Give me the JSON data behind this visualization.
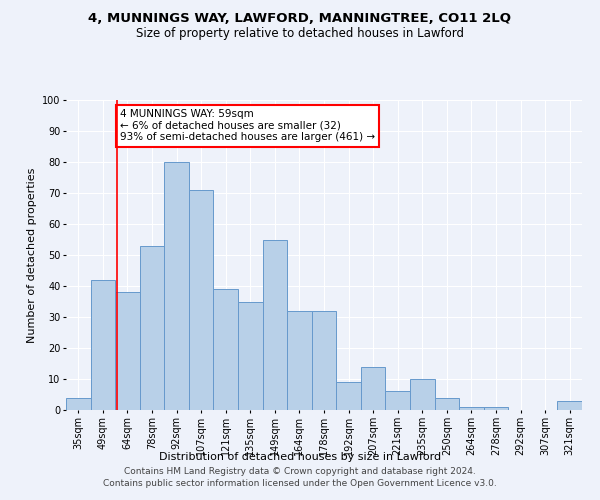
{
  "title": "4, MUNNINGS WAY, LAWFORD, MANNINGTREE, CO11 2LQ",
  "subtitle": "Size of property relative to detached houses in Lawford",
  "xlabel": "Distribution of detached houses by size in Lawford",
  "ylabel": "Number of detached properties",
  "categories": [
    "35sqm",
    "49sqm",
    "64sqm",
    "78sqm",
    "92sqm",
    "107sqm",
    "121sqm",
    "135sqm",
    "149sqm",
    "164sqm",
    "178sqm",
    "192sqm",
    "207sqm",
    "221sqm",
    "235sqm",
    "250sqm",
    "264sqm",
    "278sqm",
    "292sqm",
    "307sqm",
    "321sqm"
  ],
  "values": [
    4,
    42,
    38,
    53,
    80,
    71,
    39,
    35,
    55,
    32,
    32,
    9,
    14,
    6,
    10,
    4,
    1,
    1,
    0,
    0,
    3
  ],
  "bar_color": "#b8d0e8",
  "bar_edge_color": "#6699cc",
  "annotation_text": "4 MUNNINGS WAY: 59sqm\n← 6% of detached houses are smaller (32)\n93% of semi-detached houses are larger (461) →",
  "annotation_box_color": "white",
  "annotation_box_edge_color": "red",
  "red_line_x": 1.57,
  "ylim": [
    0,
    100
  ],
  "yticks": [
    0,
    10,
    20,
    30,
    40,
    50,
    60,
    70,
    80,
    90,
    100
  ],
  "footer": "Contains HM Land Registry data © Crown copyright and database right 2024.\nContains public sector information licensed under the Open Government Licence v3.0.",
  "background_color": "#eef2fa",
  "grid_color": "white",
  "title_fontsize": 9.5,
  "subtitle_fontsize": 8.5,
  "axis_label_fontsize": 8,
  "tick_fontsize": 7,
  "footer_fontsize": 6.5,
  "annotation_fontsize": 7.5
}
